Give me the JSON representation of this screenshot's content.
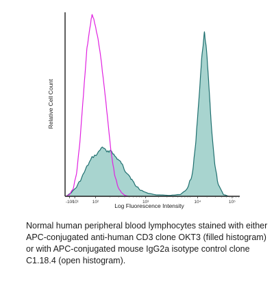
{
  "chart_data": {
    "type": "area",
    "title": "",
    "xlabel": "Log Fluorescence Intensity",
    "ylabel": "Relative Cell Count",
    "x_scale": "log",
    "x_tick_labels": [
      "-10²",
      "-10¹",
      "10²",
      "10³",
      "10⁴",
      "10⁵"
    ],
    "grid": false,
    "series": [
      {
        "label": "APC-conjugated anti-human CD3 clone OKT3 (filled histogram)",
        "style": "filled",
        "color": "#1f6f6f",
        "fill": "#a8d4cf",
        "values": [
          {
            "x": -0.3,
            "y": 0
          },
          {
            "x": -0.15,
            "y": 0.02
          },
          {
            "x": 0.0,
            "y": 0.05
          },
          {
            "x": 0.15,
            "y": 0.1
          },
          {
            "x": 0.3,
            "y": 0.16
          },
          {
            "x": 0.45,
            "y": 0.21
          },
          {
            "x": 0.6,
            "y": 0.23
          },
          {
            "x": 0.75,
            "y": 0.27
          },
          {
            "x": 0.88,
            "y": 0.24
          },
          {
            "x": 1.0,
            "y": 0.25
          },
          {
            "x": 1.1,
            "y": 0.22
          },
          {
            "x": 1.2,
            "y": 0.2
          },
          {
            "x": 1.3,
            "y": 0.18
          },
          {
            "x": 1.4,
            "y": 0.14
          },
          {
            "x": 1.5,
            "y": 0.12
          },
          {
            "x": 1.6,
            "y": 0.09
          },
          {
            "x": 1.7,
            "y": 0.06
          },
          {
            "x": 1.85,
            "y": 0.035
          },
          {
            "x": 2.0,
            "y": 0.02
          },
          {
            "x": 2.3,
            "y": 0.008
          },
          {
            "x": 2.7,
            "y": 0.005
          },
          {
            "x": 3.0,
            "y": 0.01
          },
          {
            "x": 3.2,
            "y": 0.04
          },
          {
            "x": 3.35,
            "y": 0.12
          },
          {
            "x": 3.45,
            "y": 0.3
          },
          {
            "x": 3.55,
            "y": 0.55
          },
          {
            "x": 3.62,
            "y": 0.75
          },
          {
            "x": 3.7,
            "y": 0.89
          },
          {
            "x": 3.76,
            "y": 0.79
          },
          {
            "x": 3.82,
            "y": 0.63
          },
          {
            "x": 3.9,
            "y": 0.38
          },
          {
            "x": 4.0,
            "y": 0.17
          },
          {
            "x": 4.1,
            "y": 0.06
          },
          {
            "x": 4.25,
            "y": 0.01
          },
          {
            "x": 4.4,
            "y": 0
          }
        ]
      },
      {
        "label": "APC-conjugated mouse IgG2a isotype control clone C1.18.4 (open histogram)",
        "style": "open",
        "color": "#e020e0",
        "values": [
          {
            "x": -0.3,
            "y": 0
          },
          {
            "x": -0.2,
            "y": 0.01
          },
          {
            "x": -0.1,
            "y": 0.04
          },
          {
            "x": 0.0,
            "y": 0.12
          },
          {
            "x": 0.1,
            "y": 0.3
          },
          {
            "x": 0.2,
            "y": 0.55
          },
          {
            "x": 0.3,
            "y": 0.8
          },
          {
            "x": 0.4,
            "y": 0.93
          },
          {
            "x": 0.45,
            "y": 0.99
          },
          {
            "x": 0.5,
            "y": 0.96
          },
          {
            "x": 0.6,
            "y": 0.88
          },
          {
            "x": 0.7,
            "y": 0.76
          },
          {
            "x": 0.8,
            "y": 0.6
          },
          {
            "x": 0.9,
            "y": 0.42
          },
          {
            "x": 1.0,
            "y": 0.24
          },
          {
            "x": 1.1,
            "y": 0.12
          },
          {
            "x": 1.2,
            "y": 0.05
          },
          {
            "x": 1.3,
            "y": 0.02
          },
          {
            "x": 1.4,
            "y": 0.005
          },
          {
            "x": 1.5,
            "y": 0
          }
        ]
      }
    ],
    "xlim": [
      -0.33,
      4.72
    ],
    "ylim": [
      0,
      1
    ]
  },
  "caption": "Normal human peripheral blood lymphocytes stained with either APC-conjugated anti-human CD3 clone OKT3 (filled histogram) or with APC-conjugated mouse IgG2a isotype control clone C1.18.4 (open histogram)."
}
